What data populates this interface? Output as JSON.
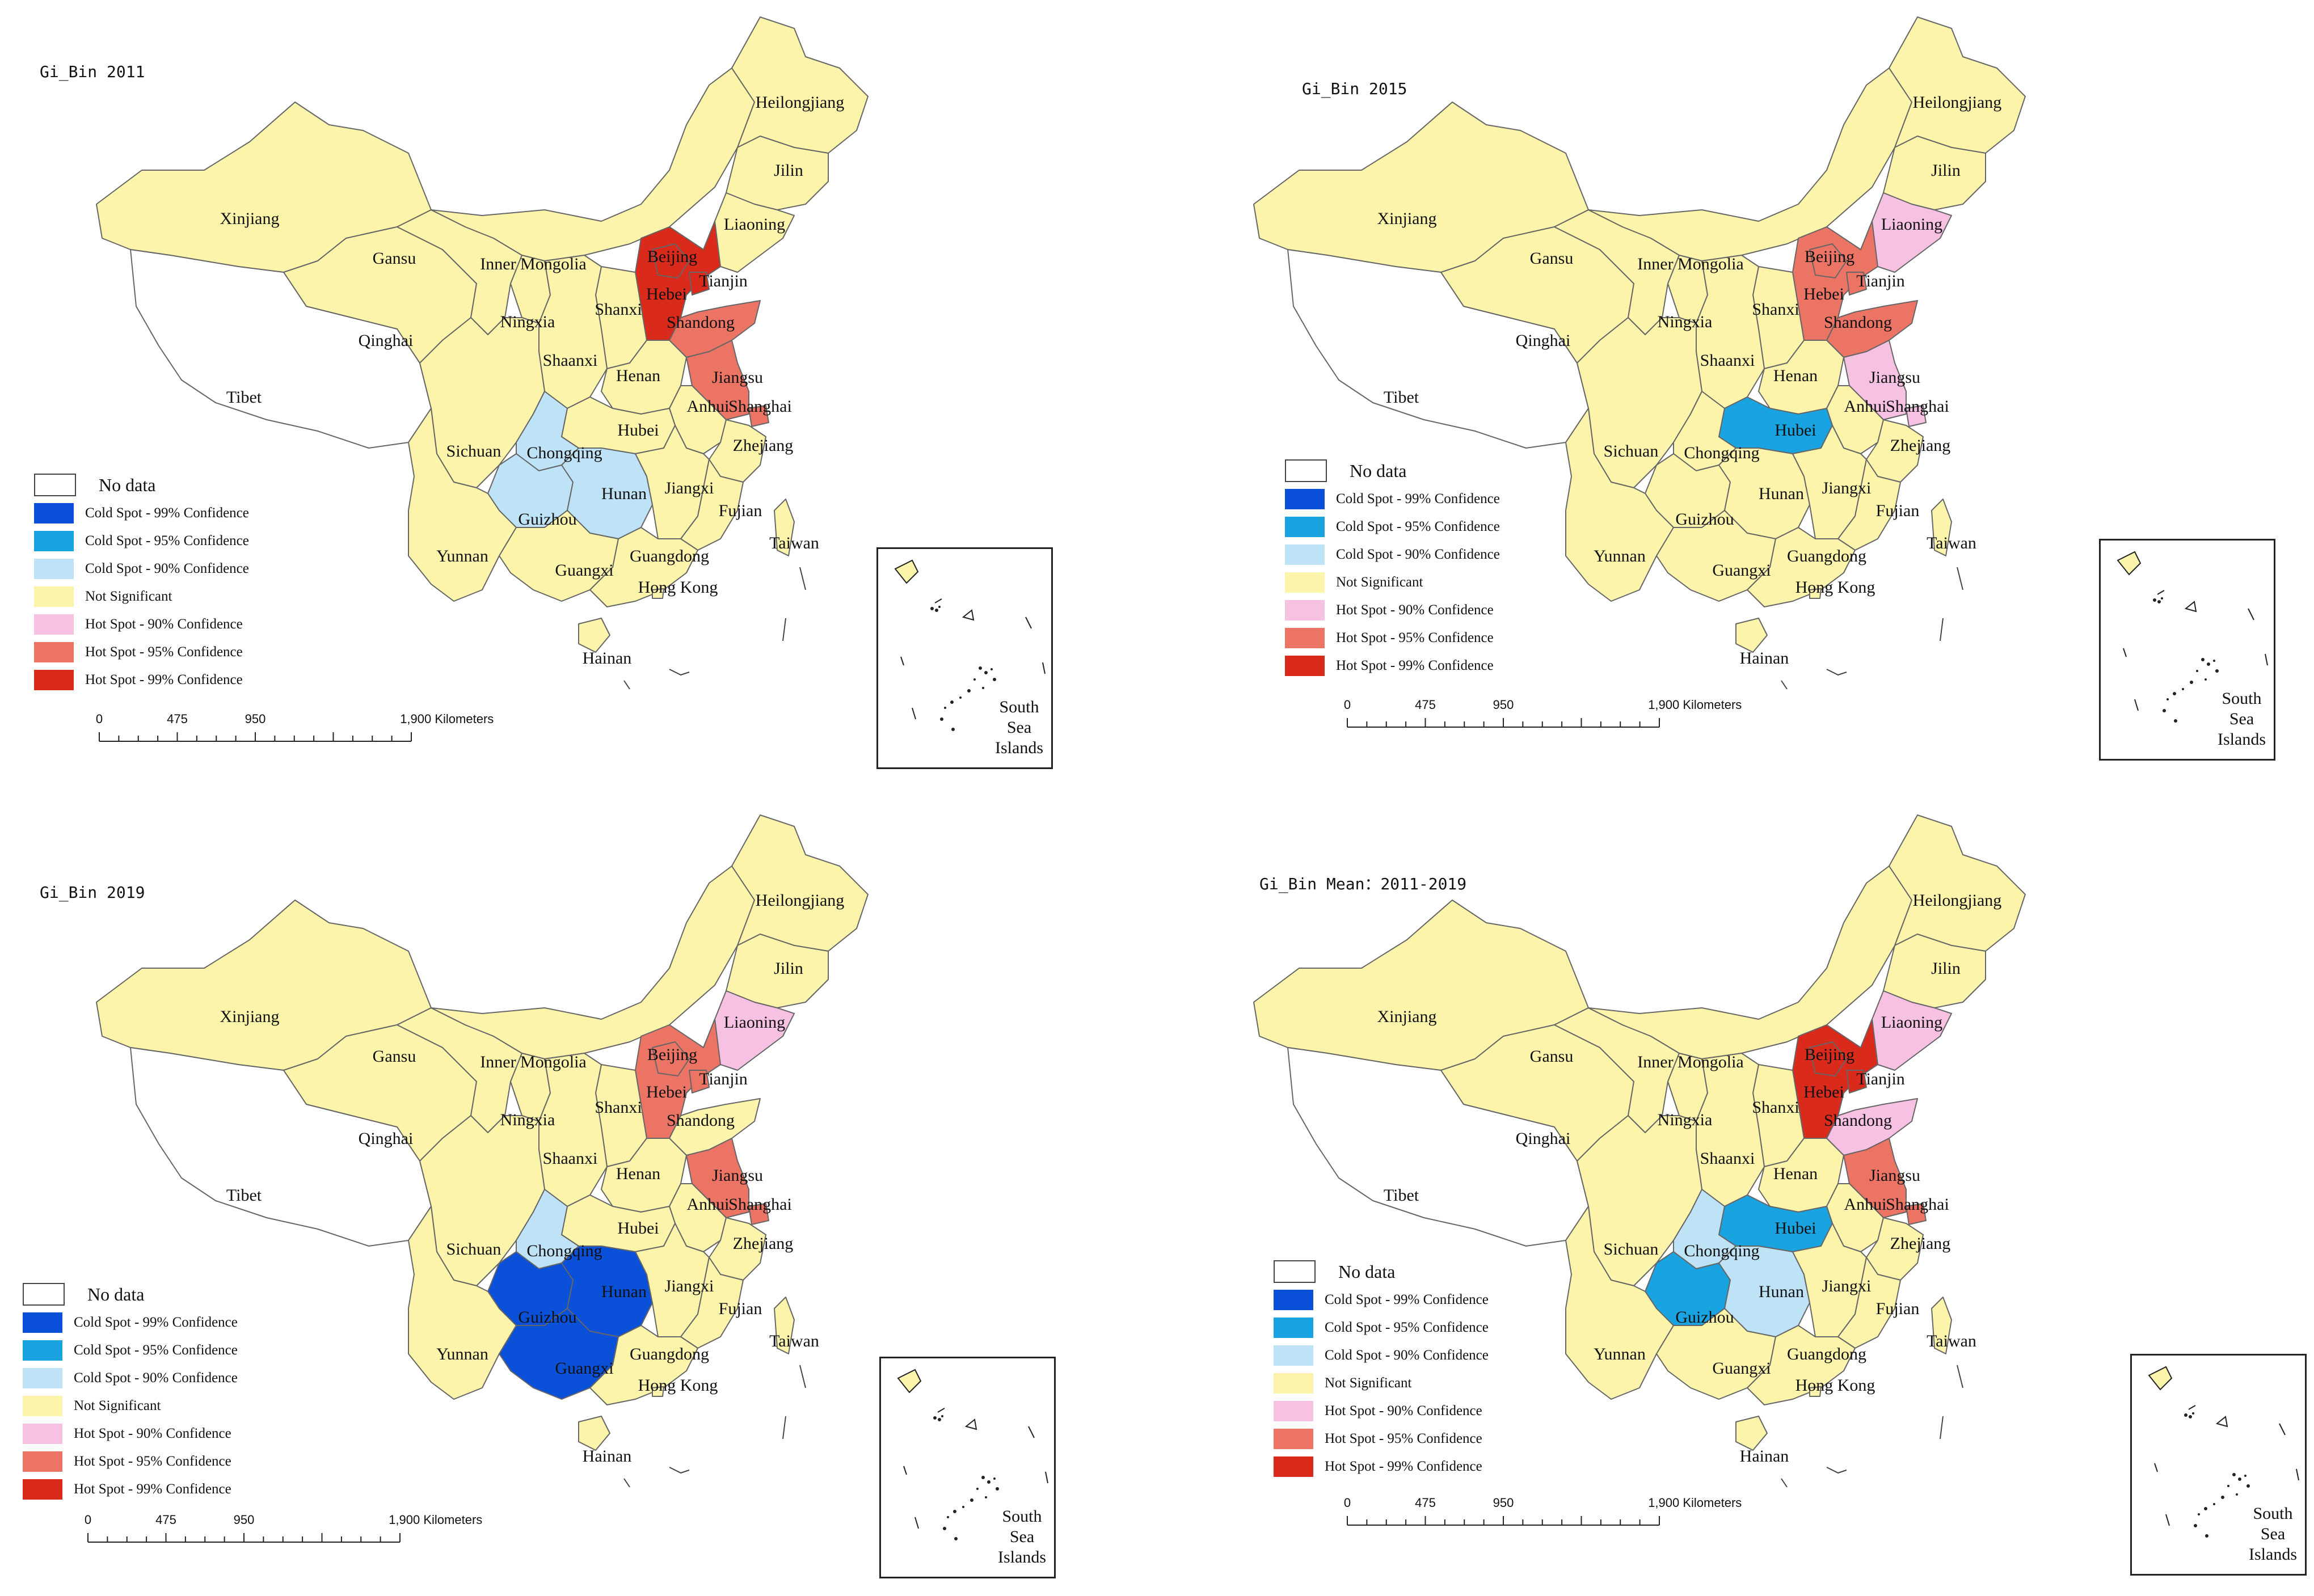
{
  "panels": [
    {
      "title": "Gi_Bin 2011",
      "fills": {
        "Beijing": "hot99",
        "Hebei": "hot99",
        "Tianjin": "hot99",
        "Shandong": "hot95",
        "Jiangsu": "hot95",
        "Shanghai": "hot95",
        "Anhui": "ns",
        "Liaoning": "ns",
        "Chongqing": "cold90",
        "Hunan": "cold90",
        "Guizhou": "cold90",
        "Hubei": "ns",
        "Guangxi": "ns"
      }
    },
    {
      "title": "Gi_Bin 2015",
      "fills": {
        "Beijing": "hot95",
        "Hebei": "hot95",
        "Tianjin": "hot95",
        "Shandong": "hot95",
        "Liaoning": "hot90",
        "Jiangsu": "hot90",
        "Shanghai": "hot90",
        "Hubei": "cold95",
        "Hunan": "ns",
        "Guizhou": "ns",
        "Chongqing": "ns",
        "Guangxi": "ns",
        "Anhui": "ns"
      }
    },
    {
      "title": "Gi_Bin 2019",
      "fills": {
        "Beijing": "hot95",
        "Hebei": "hot95",
        "Tianjin": "hot95",
        "Shandong": "ns",
        "Liaoning": "hot90",
        "Jiangsu": "hot95",
        "Shanghai": "hot95",
        "Hubei": "ns",
        "Hunan": "cold99",
        "Guizhou": "cold99",
        "Guangxi": "cold99",
        "Chongqing": "cold90",
        "Anhui": "ns"
      }
    },
    {
      "title": "Gi_Bin Mean：2011-2019",
      "fills": {
        "Beijing": "hot99",
        "Hebei": "hot99",
        "Tianjin": "hot99",
        "Shandong": "hot90",
        "Liaoning": "hot90",
        "Jiangsu": "hot95",
        "Shanghai": "hot95",
        "Hubei": "cold95",
        "Hunan": "cold90",
        "Chongqing": "cold90",
        "Guizhou": "cold95",
        "Guangxi": "ns",
        "Anhui": "ns"
      }
    }
  ],
  "legend": {
    "no_data": "No data",
    "classes": [
      {
        "key": "cold99",
        "label": "Cold Spot - 99% Confidence",
        "color": "#0a50d8"
      },
      {
        "key": "cold95",
        "label": "Cold Spot - 95% Confidence",
        "color": "#19a3e0"
      },
      {
        "key": "cold90",
        "label": "Cold Spot - 90% Confidence",
        "color": "#bfe3f6"
      },
      {
        "key": "ns",
        "label": "Not Significant",
        "color": "#fbf4aa"
      },
      {
        "key": "hot90",
        "label": "Hot Spot - 90% Confidence",
        "color": "#f7c1e3"
      },
      {
        "key": "hot95",
        "label": "Hot Spot - 95% Confidence",
        "color": "#ec7465"
      },
      {
        "key": "hot99",
        "label": "Hot Spot - 99% Confidence",
        "color": "#d92a1b"
      }
    ]
  },
  "scale": {
    "ticks": [
      "0",
      "475",
      "950",
      "1,900 Kilometers"
    ],
    "tick_values_km": [
      0,
      475,
      950,
      1900
    ]
  },
  "inset_label": [
    "South",
    "Sea",
    "Islands"
  ],
  "province_labels": [
    "Xinjiang",
    "Tibet",
    "Qinghai",
    "Gansu",
    "Inner Mongolia",
    "Heilongjiang",
    "Jilin",
    "Liaoning",
    "Beijing",
    "Tianjin",
    "Hebei",
    "Shanxi",
    "Shandong",
    "Ningxia",
    "Shaanxi",
    "Henan",
    "Jiangsu",
    "Anhui",
    "Shanghai",
    "Hubei",
    "Zhejiang",
    "Sichuan",
    "Chongqing",
    "Hunan",
    "Jiangxi",
    "Guizhou",
    "Fujian",
    "Yunnan",
    "Guangxi",
    "Guangdong",
    "Hong Kong",
    "Taiwan",
    "Hainan"
  ],
  "colors": {
    "background": "#ffffff",
    "no_data": "#ffffff",
    "border": "#555555"
  }
}
